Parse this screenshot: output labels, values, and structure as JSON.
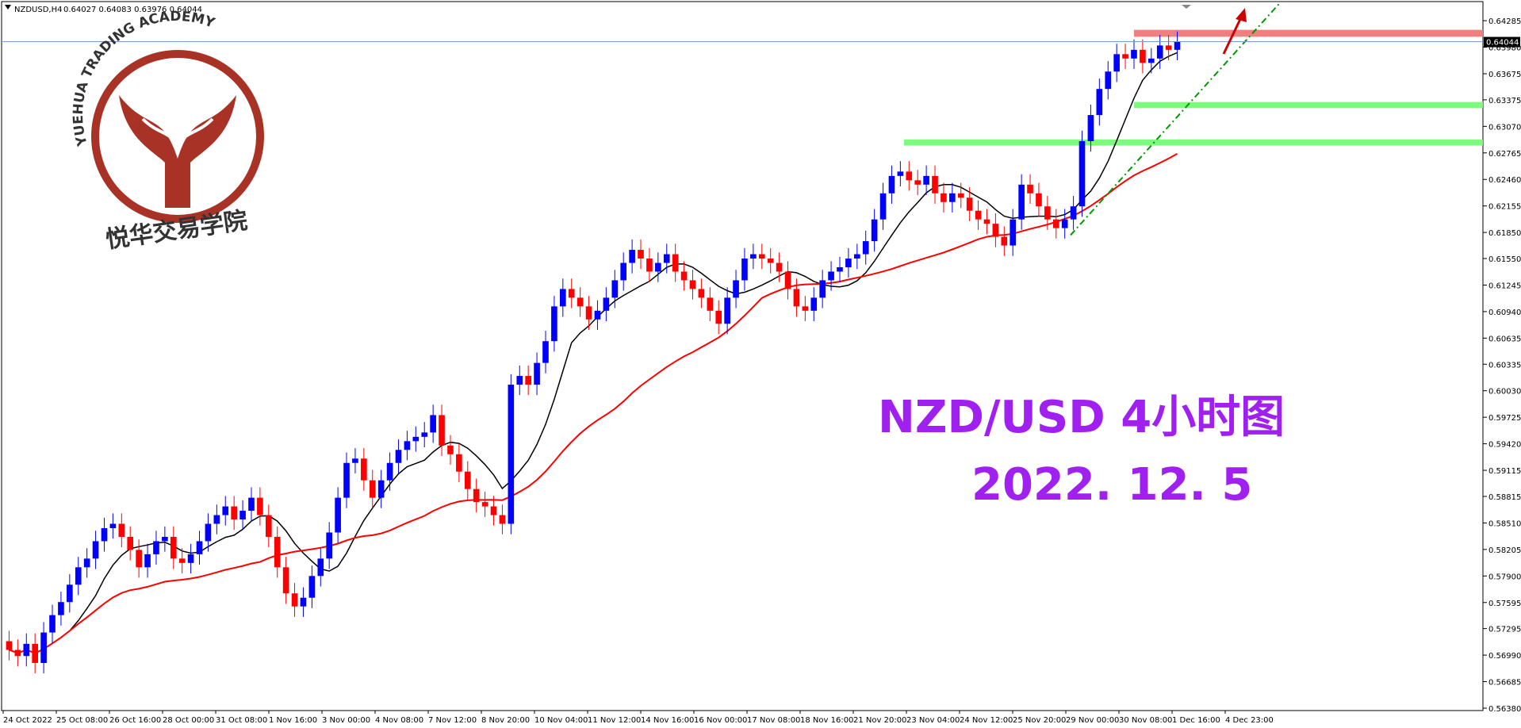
{
  "header": {
    "symbol_info": "NZDUSD,H4",
    "ohlc": "0.64027 0.64083 0.63976 0.64044"
  },
  "logo": {
    "arc_text": "YUEHUA TRADING ACADEMY",
    "cn_text": "悦华交易学院",
    "color": "#a93226"
  },
  "annotation": {
    "title": "NZD/USD 4小时图",
    "date": "2022. 12. 5",
    "color": "#a020f0"
  },
  "current_price": {
    "label": "0.64044",
    "value": 0.64044
  },
  "colors": {
    "bull": "#0000ff",
    "bear": "#ff0000",
    "ma_fast": "#000000",
    "ma_slow": "#ff0000",
    "resistance_zone": "#f08080",
    "support_zone": "#7cfc7c",
    "trendline": "#009900",
    "arrow": "#cc0000"
  },
  "chart_data": {
    "type": "candlestick",
    "instrument": "NZDUSD",
    "timeframe": "H4",
    "ylim": [
      0.5638,
      0.6445
    ],
    "y_ticks": [
      "0.64285",
      "0.63980",
      "0.63675",
      "0.63375",
      "0.63070",
      "0.62765",
      "0.62460",
      "0.62155",
      "0.61850",
      "0.61550",
      "0.61245",
      "0.60940",
      "0.60635",
      "0.60335",
      "0.60030",
      "0.59725",
      "0.59420",
      "0.59115",
      "0.58815",
      "0.58510",
      "0.58205",
      "0.57900",
      "0.57595",
      "0.57295",
      "0.56990",
      "0.56685",
      "0.56380"
    ],
    "x_ticks": [
      "24 Oct 2022",
      "25 Oct 08:00",
      "26 Oct 16:00",
      "28 Oct 00:00",
      "31 Oct 08:00",
      "1 Nov 16:00",
      "3 Nov 00:00",
      "4 Nov 08:00",
      "7 Nov 12:00",
      "8 Nov 20:00",
      "10 Nov 04:00",
      "11 Nov 12:00",
      "14 Nov 16:00",
      "16 Nov 00:00",
      "17 Nov 08:00",
      "18 Nov 16:00",
      "21 Nov 20:00",
      "23 Nov 04:00",
      "24 Nov 12:00",
      "25 Nov 20:00",
      "29 Nov 00:00",
      "30 Nov 08:00",
      "1 Dec 16:00",
      "4 Dec 23:00"
    ],
    "closes": [
      0.5705,
      0.5698,
      0.5712,
      0.569,
      0.5725,
      0.5745,
      0.576,
      0.578,
      0.58,
      0.581,
      0.583,
      0.5845,
      0.585,
      0.5835,
      0.582,
      0.58,
      0.5815,
      0.583,
      0.5835,
      0.581,
      0.5805,
      0.5815,
      0.583,
      0.585,
      0.586,
      0.587,
      0.5855,
      0.5865,
      0.588,
      0.586,
      0.5835,
      0.58,
      0.577,
      0.5755,
      0.5765,
      0.579,
      0.581,
      0.584,
      0.588,
      0.592,
      0.5925,
      0.59,
      0.588,
      0.59,
      0.592,
      0.5935,
      0.5945,
      0.595,
      0.5955,
      0.5975,
      0.594,
      0.593,
      0.591,
      0.589,
      0.5875,
      0.587,
      0.586,
      0.585,
      0.601,
      0.602,
      0.601,
      0.6035,
      0.606,
      0.61,
      0.612,
      0.611,
      0.61,
      0.6085,
      0.6095,
      0.611,
      0.613,
      0.615,
      0.6165,
      0.6155,
      0.614,
      0.615,
      0.616,
      0.614,
      0.613,
      0.612,
      0.611,
      0.6095,
      0.608,
      0.611,
      0.613,
      0.6155,
      0.616,
      0.6155,
      0.615,
      0.614,
      0.612,
      0.61,
      0.6095,
      0.611,
      0.613,
      0.614,
      0.6145,
      0.6155,
      0.616,
      0.6175,
      0.62,
      0.623,
      0.625,
      0.6255,
      0.6245,
      0.624,
      0.625,
      0.623,
      0.622,
      0.623,
      0.6225,
      0.621,
      0.62,
      0.6195,
      0.618,
      0.617,
      0.62,
      0.624,
      0.623,
      0.6215,
      0.62,
      0.619,
      0.62,
      0.6215,
      0.629,
      0.632,
      0.635,
      0.637,
      0.639,
      0.6385,
      0.6395,
      0.638,
      0.6385,
      0.64,
      0.6395,
      0.6404
    ]
  }
}
